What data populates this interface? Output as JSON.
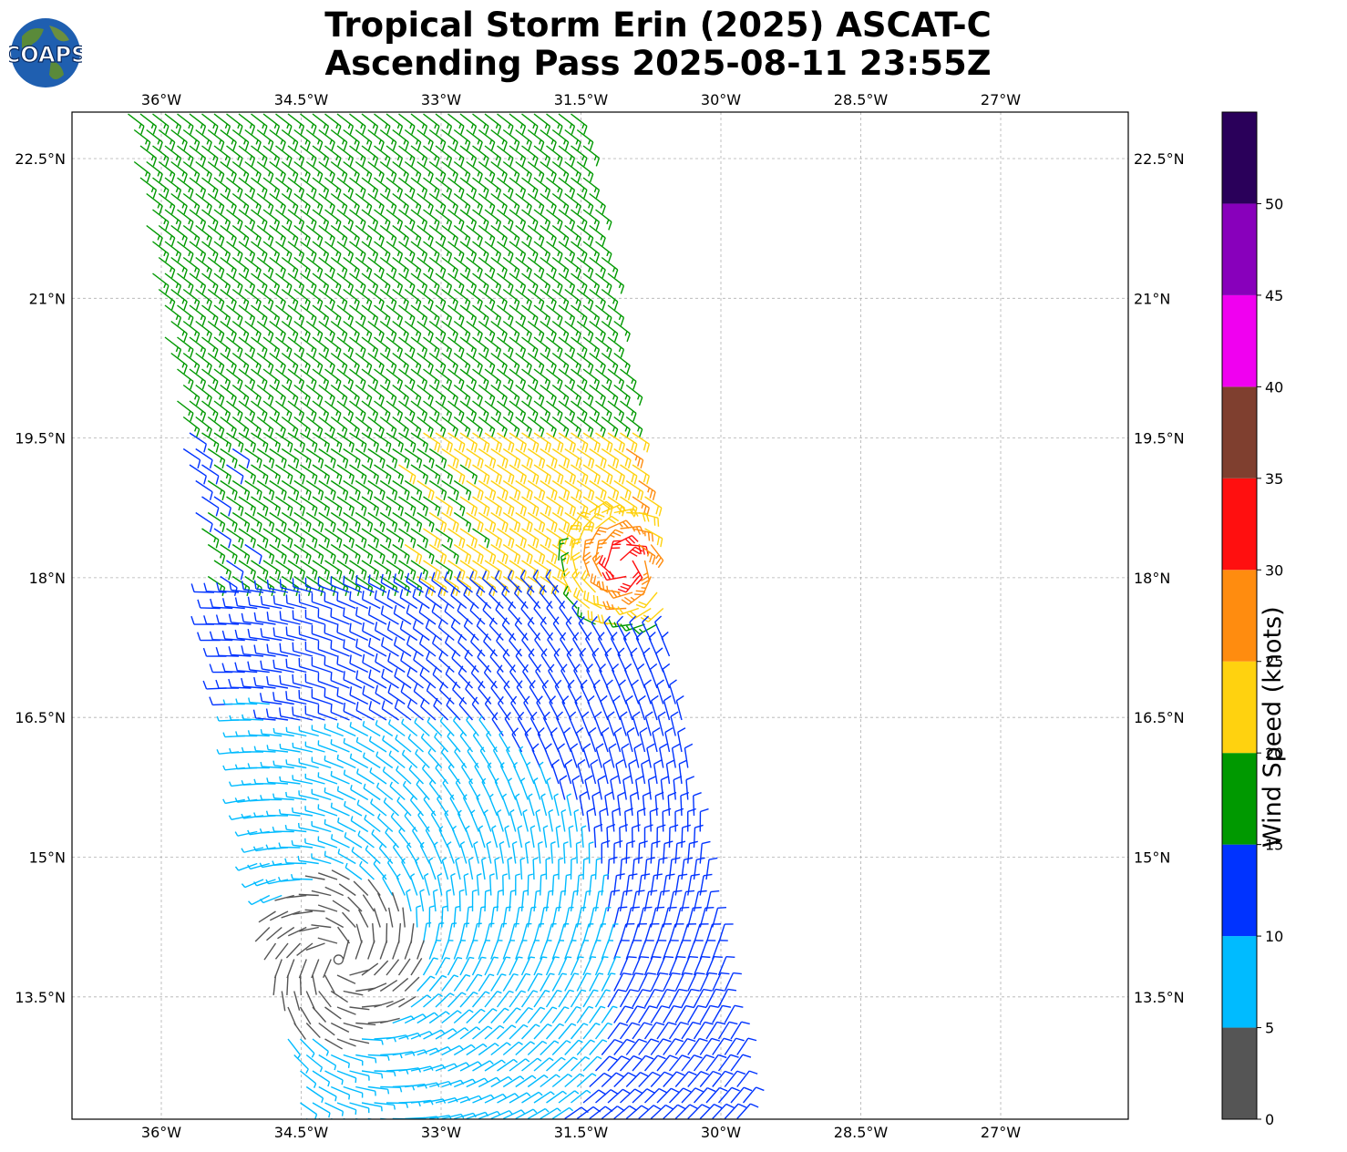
{
  "title": {
    "line1": "Tropical Storm Erin (2025) ASCAT-C",
    "line2": "Ascending Pass 2025-08-11 23:55Z"
  },
  "logo": {
    "text": "COAPS",
    "icon": "globe-logo-icon"
  },
  "map": {
    "lon_range": [
      -37.75,
      -21.65
    ],
    "lat_range": [
      11.5,
      22.9
    ],
    "x_ticks": [
      "36°W",
      "34.5°W",
      "33°W",
      "31.5°W",
      "30°W",
      "28.5°W",
      "27°W"
    ],
    "y_ticks": [
      "22.5°N",
      "21°N",
      "19.5°N",
      "18°N",
      "16.5°N",
      "15°N",
      "13.5°N"
    ],
    "gridlines": true
  },
  "colorbar": {
    "label": "Wind Speed (knots)",
    "ticks": [
      "0",
      "5",
      "10",
      "15",
      "20",
      "25",
      "30",
      "35",
      "40",
      "45",
      "50"
    ],
    "bins": [
      {
        "min": 0,
        "max": 5,
        "color": "#555555"
      },
      {
        "min": 5,
        "max": 10,
        "color": "#00bbff"
      },
      {
        "min": 10,
        "max": 15,
        "color": "#0033ff"
      },
      {
        "min": 15,
        "max": 20,
        "color": "#009900"
      },
      {
        "min": 20,
        "max": 25,
        "color": "#ffd20f"
      },
      {
        "min": 25,
        "max": 30,
        "color": "#ff8c0f"
      },
      {
        "min": 30,
        "max": 35,
        "color": "#ff0f0f"
      },
      {
        "min": 35,
        "max": 40,
        "color": "#7f3f2f"
      },
      {
        "min": 40,
        "max": 45,
        "color": "#f000f0"
      },
      {
        "min": 45,
        "max": 50,
        "color": "#8800bb"
      },
      {
        "min": 50,
        "max": 55,
        "color": "#2a005a"
      }
    ]
  },
  "chart_data": {
    "type": "wind-barb-map",
    "storm_center": {
      "lon": -34.1,
      "lat": 13.9
    },
    "swath_corners": [
      [
        -36.4,
        23.0
      ],
      [
        -31.5,
        23.0
      ],
      [
        -29.6,
        11.6
      ],
      [
        -34.4,
        11.6
      ]
    ],
    "regions": [
      {
        "zone": "north swath",
        "speed_knots": "15-20",
        "direction": "from NE"
      },
      {
        "zone": "northeast core",
        "speed_knots": "20-25",
        "direction": "from E"
      },
      {
        "zone": "storm northeast quadrant",
        "speed_knots": "25-35",
        "direction": "from E"
      },
      {
        "zone": "central",
        "speed_knots": "10-15",
        "direction": "from NE"
      },
      {
        "zone": "south",
        "speed_knots": "5-15",
        "direction": "cyclonic"
      },
      {
        "zone": "center",
        "speed_knots": "0-5",
        "direction": "variable"
      }
    ]
  }
}
